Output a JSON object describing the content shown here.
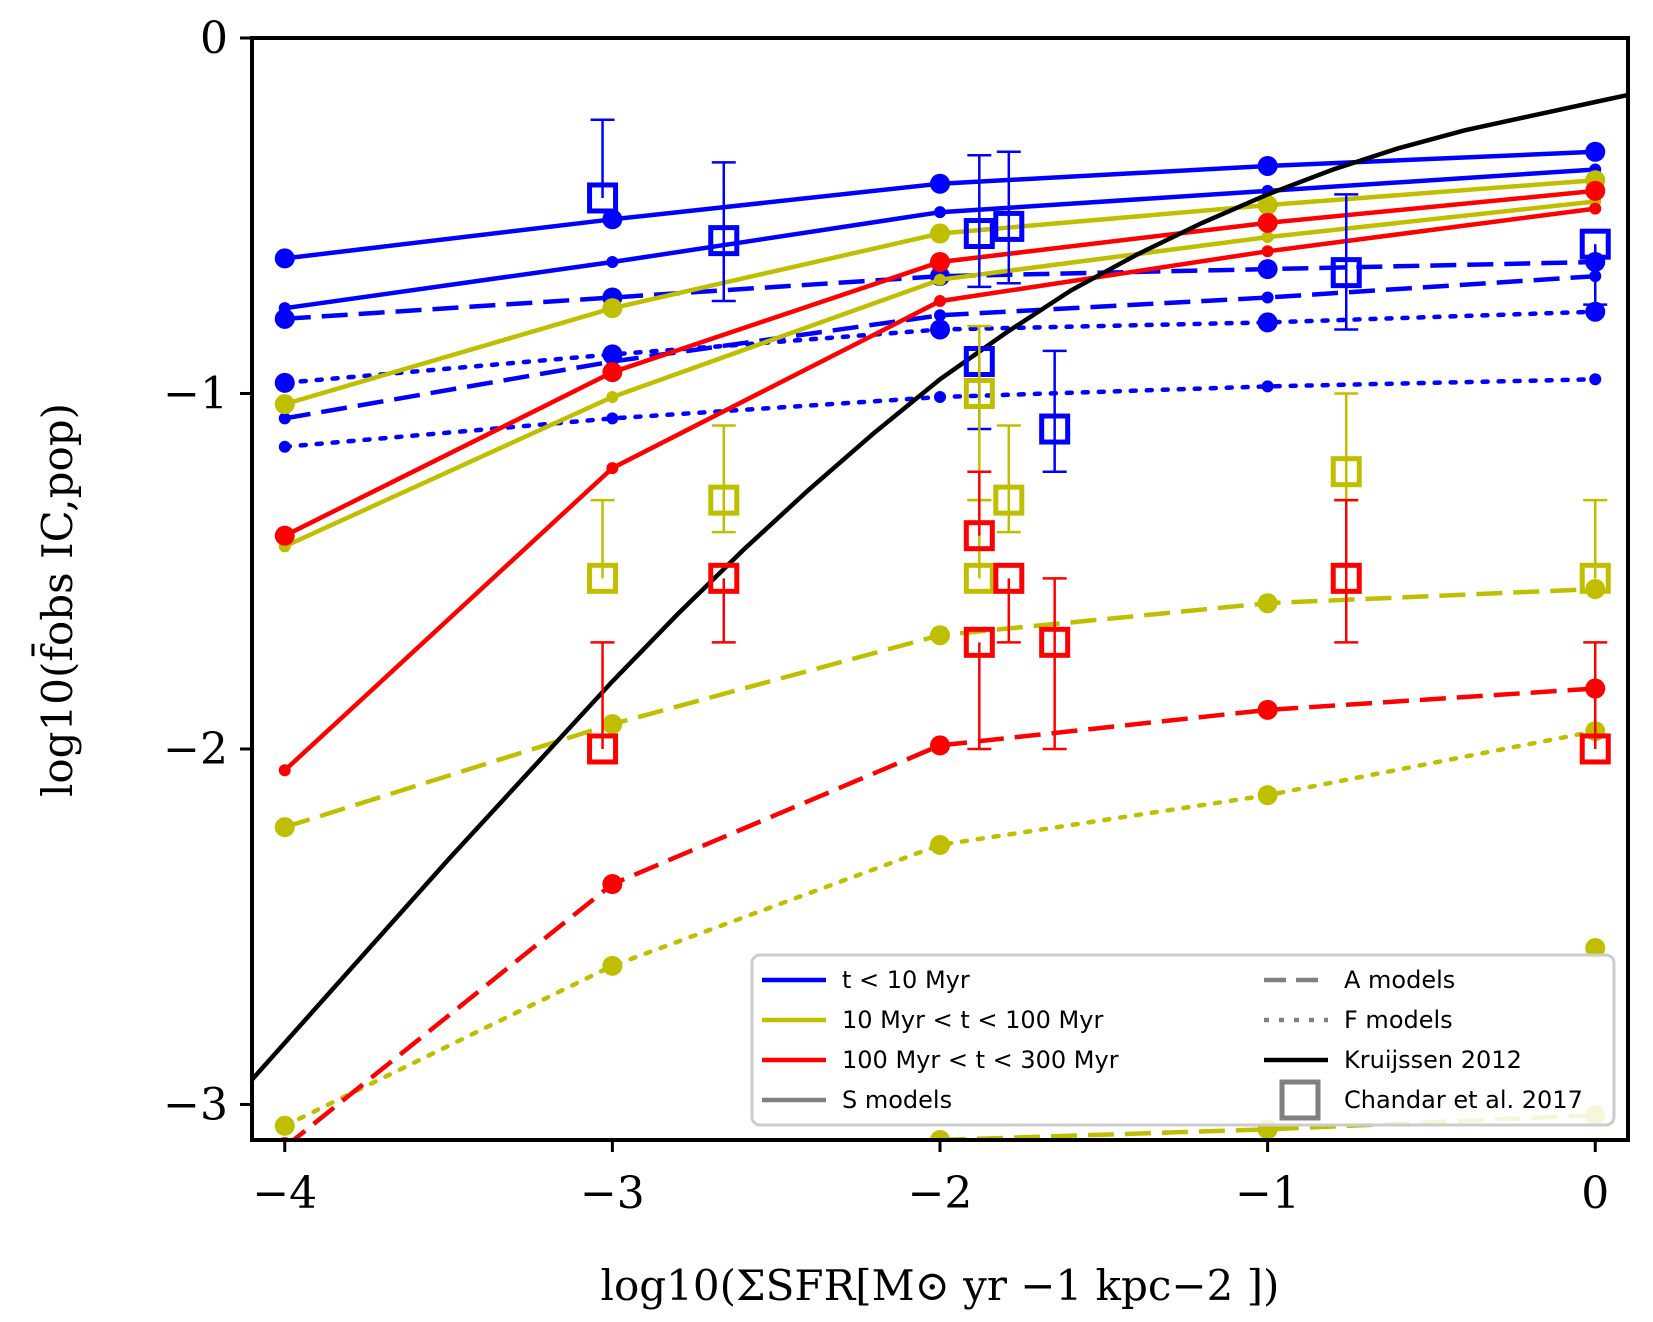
{
  "chart_data": {
    "type": "line",
    "title": "",
    "xlabel": "log10(ΣSFR[M⊙ yr −1 kpc−2 ])",
    "ylabel": "log10(f̄obs IC,pop)",
    "xlim": [
      -4.1,
      0.1
    ],
    "ylim": [
      -3.1,
      0
    ],
    "xticks": [
      -4,
      -3,
      -2,
      -1,
      0
    ],
    "xtick_labels": [
      "−4",
      "−3",
      "−2",
      "−1",
      "0"
    ],
    "yticks": [
      0,
      -1,
      -2,
      -3
    ],
    "ytick_labels": [
      "0",
      "−1",
      "−2",
      "−3"
    ],
    "grid": false,
    "legend_position": "bottom-right",
    "x": [
      -4,
      -3,
      -2,
      -1,
      0
    ],
    "colors": {
      "blue": "#0000ff",
      "yellow": "#bfbf00",
      "red": "#ff0000",
      "black": "#000000",
      "gray": "#808080"
    },
    "series": [
      {
        "name": "t<10 Myr S (1)",
        "color": "blue",
        "style": "solid",
        "values": [
          -0.62,
          -0.51,
          -0.41,
          -0.36,
          -0.32
        ],
        "marker": "large"
      },
      {
        "name": "t<10 Myr S (2)",
        "color": "blue",
        "style": "solid",
        "values": [
          -0.76,
          -0.63,
          -0.49,
          -0.43,
          -0.37
        ],
        "marker": "small"
      },
      {
        "name": "t<10 Myr A (1)",
        "color": "blue",
        "style": "dashed",
        "values": [
          -0.79,
          -0.73,
          -0.67,
          -0.65,
          -0.63
        ],
        "marker": "large"
      },
      {
        "name": "t<10 Myr A (2)",
        "color": "blue",
        "style": "dashed",
        "values": [
          -1.07,
          -0.91,
          -0.78,
          -0.73,
          -0.67
        ],
        "marker": "small"
      },
      {
        "name": "t<10 Myr F (1)",
        "color": "blue",
        "style": "dotted",
        "values": [
          -0.97,
          -0.89,
          -0.82,
          -0.8,
          -0.77
        ],
        "marker": "large"
      },
      {
        "name": "t<10 Myr F (2)",
        "color": "blue",
        "style": "dotted",
        "values": [
          -1.15,
          -1.07,
          -1.01,
          -0.98,
          -0.96
        ],
        "marker": "small"
      },
      {
        "name": "10<t<100 Myr S (1)",
        "color": "yellow",
        "style": "solid",
        "values": [
          -1.03,
          -0.76,
          -0.55,
          -0.47,
          -0.4
        ],
        "marker": "large"
      },
      {
        "name": "10<t<100 Myr S (2)",
        "color": "yellow",
        "style": "solid",
        "values": [
          -1.43,
          -1.01,
          -0.68,
          -0.56,
          -0.46
        ],
        "marker": "small"
      },
      {
        "name": "10<t<100 Myr A (1)",
        "color": "yellow",
        "style": "dashed",
        "values": [
          -2.22,
          -1.93,
          -1.68,
          -1.59,
          -1.55
        ],
        "marker": "large"
      },
      {
        "name": "10<t<100 Myr A (2)",
        "color": "yellow",
        "style": "dashed",
        "values": [
          null,
          null,
          -3.1,
          -3.07,
          -3.03
        ],
        "marker": "large"
      },
      {
        "name": "10<t<100 Myr F (1)",
        "color": "yellow",
        "style": "dotted",
        "values": [
          -3.06,
          -2.61,
          -2.27,
          -2.13,
          -1.95
        ],
        "marker": "large"
      },
      {
        "name": "10<t<100 Myr F (2)",
        "color": "yellow",
        "style": "dotted",
        "values": [
          null,
          null,
          null,
          null,
          -2.56
        ],
        "marker": "large"
      },
      {
        "name": "100<t<300 Myr S (1)",
        "color": "red",
        "style": "solid",
        "values": [
          -1.4,
          -0.94,
          -0.63,
          -0.52,
          -0.43
        ],
        "marker": "large"
      },
      {
        "name": "100<t<300 Myr S (2)",
        "color": "red",
        "style": "solid",
        "values": [
          -2.06,
          -1.21,
          -0.74,
          -0.6,
          -0.48
        ],
        "marker": "small"
      },
      {
        "name": "100<t<300 Myr A (1)",
        "color": "red",
        "style": "dashed",
        "values": [
          -3.12,
          -2.38,
          -1.99,
          -1.89,
          -1.83
        ],
        "marker": "large"
      },
      {
        "name": "Kruijssen 2012",
        "color": "black",
        "style": "solid",
        "curve": true,
        "x": [
          -4.1,
          -3.8,
          -3.5,
          -3.2,
          -3.0,
          -2.8,
          -2.6,
          -2.4,
          -2.2,
          -2.0,
          -1.8,
          -1.6,
          -1.4,
          -1.2,
          -1.0,
          -0.8,
          -0.6,
          -0.4,
          -0.2,
          0.0,
          0.1
        ],
        "values": [
          -2.93,
          -2.62,
          -2.31,
          -2.01,
          -1.81,
          -1.62,
          -1.44,
          -1.27,
          -1.11,
          -0.96,
          -0.83,
          -0.71,
          -0.61,
          -0.52,
          -0.44,
          -0.37,
          -0.31,
          -0.26,
          -0.22,
          -0.18,
          -0.16
        ]
      }
    ],
    "observations": [
      {
        "color": "blue",
        "x": -3.03,
        "y": -0.45,
        "err": [
          0.22,
          0.0
        ]
      },
      {
        "color": "blue",
        "x": -2.66,
        "y": -0.57,
        "err": [
          0.22,
          0.17
        ]
      },
      {
        "color": "blue",
        "x": -1.88,
        "y": -0.55,
        "err": [
          0.22,
          0.15
        ]
      },
      {
        "color": "blue",
        "x": -1.79,
        "y": -0.53,
        "err": [
          0.21,
          0.16
        ]
      },
      {
        "color": "blue",
        "x": -1.88,
        "y": -0.91,
        "err": [
          0.0,
          0.19
        ]
      },
      {
        "color": "blue",
        "x": -1.65,
        "y": -1.1,
        "err": [
          0.22,
          0.12
        ]
      },
      {
        "color": "blue",
        "x": -0.76,
        "y": -0.66,
        "err": [
          0.22,
          0.16
        ]
      },
      {
        "color": "blue",
        "x": 0.0,
        "y": -0.58,
        "err": [
          0.0,
          0.17
        ]
      },
      {
        "color": "yellow",
        "x": -3.03,
        "y": -1.52,
        "err": [
          0.22,
          0.0
        ]
      },
      {
        "color": "yellow",
        "x": -2.66,
        "y": -1.3,
        "err": [
          0.21,
          0.09
        ]
      },
      {
        "color": "yellow",
        "x": -1.88,
        "y": -1.0,
        "err": [
          0.19,
          0.3
        ]
      },
      {
        "color": "yellow",
        "x": -1.79,
        "y": -1.3,
        "err": [
          0.21,
          0.09
        ]
      },
      {
        "color": "yellow",
        "x": -1.88,
        "y": -1.52,
        "err": [
          0.22,
          0.0
        ]
      },
      {
        "color": "yellow",
        "x": -0.76,
        "y": -1.22,
        "err": [
          0.22,
          0.08
        ]
      },
      {
        "color": "yellow",
        "x": 0.0,
        "y": -1.52,
        "err": [
          0.22,
          0.0
        ]
      },
      {
        "color": "red",
        "x": -3.03,
        "y": -2.0,
        "err": [
          0.3,
          0.0
        ]
      },
      {
        "color": "red",
        "x": -2.66,
        "y": -1.52,
        "err": [
          0.0,
          0.18
        ]
      },
      {
        "color": "red",
        "x": -1.88,
        "y": -1.4,
        "err": [
          0.18,
          0.0
        ]
      },
      {
        "color": "red",
        "x": -1.79,
        "y": -1.52,
        "err": [
          0.0,
          0.18
        ]
      },
      {
        "color": "red",
        "x": -1.88,
        "y": -1.7,
        "err": [
          0.0,
          0.3
        ]
      },
      {
        "color": "red",
        "x": -1.65,
        "y": -1.7,
        "err": [
          0.18,
          0.3
        ]
      },
      {
        "color": "red",
        "x": -0.76,
        "y": -1.52,
        "err": [
          0.22,
          0.18
        ]
      },
      {
        "color": "red",
        "x": 0.0,
        "y": -2.0,
        "err": [
          0.3,
          0.0
        ]
      }
    ],
    "legend": [
      {
        "label": "t < 10 Myr",
        "color": "blue",
        "style": "solid"
      },
      {
        "label": "10 Myr < t < 100 Myr",
        "color": "yellow",
        "style": "solid"
      },
      {
        "label": "100 Myr < t < 300 Myr",
        "color": "red",
        "style": "solid"
      },
      {
        "label": "S models",
        "color": "gray",
        "style": "solid"
      },
      {
        "label": "A models",
        "color": "gray",
        "style": "dashed"
      },
      {
        "label": "F models",
        "color": "gray",
        "style": "dotted"
      },
      {
        "label": "Kruijssen 2012",
        "color": "black",
        "style": "solid"
      },
      {
        "label": "Chandar et al. 2017",
        "color": "gray",
        "style": "square"
      }
    ]
  }
}
